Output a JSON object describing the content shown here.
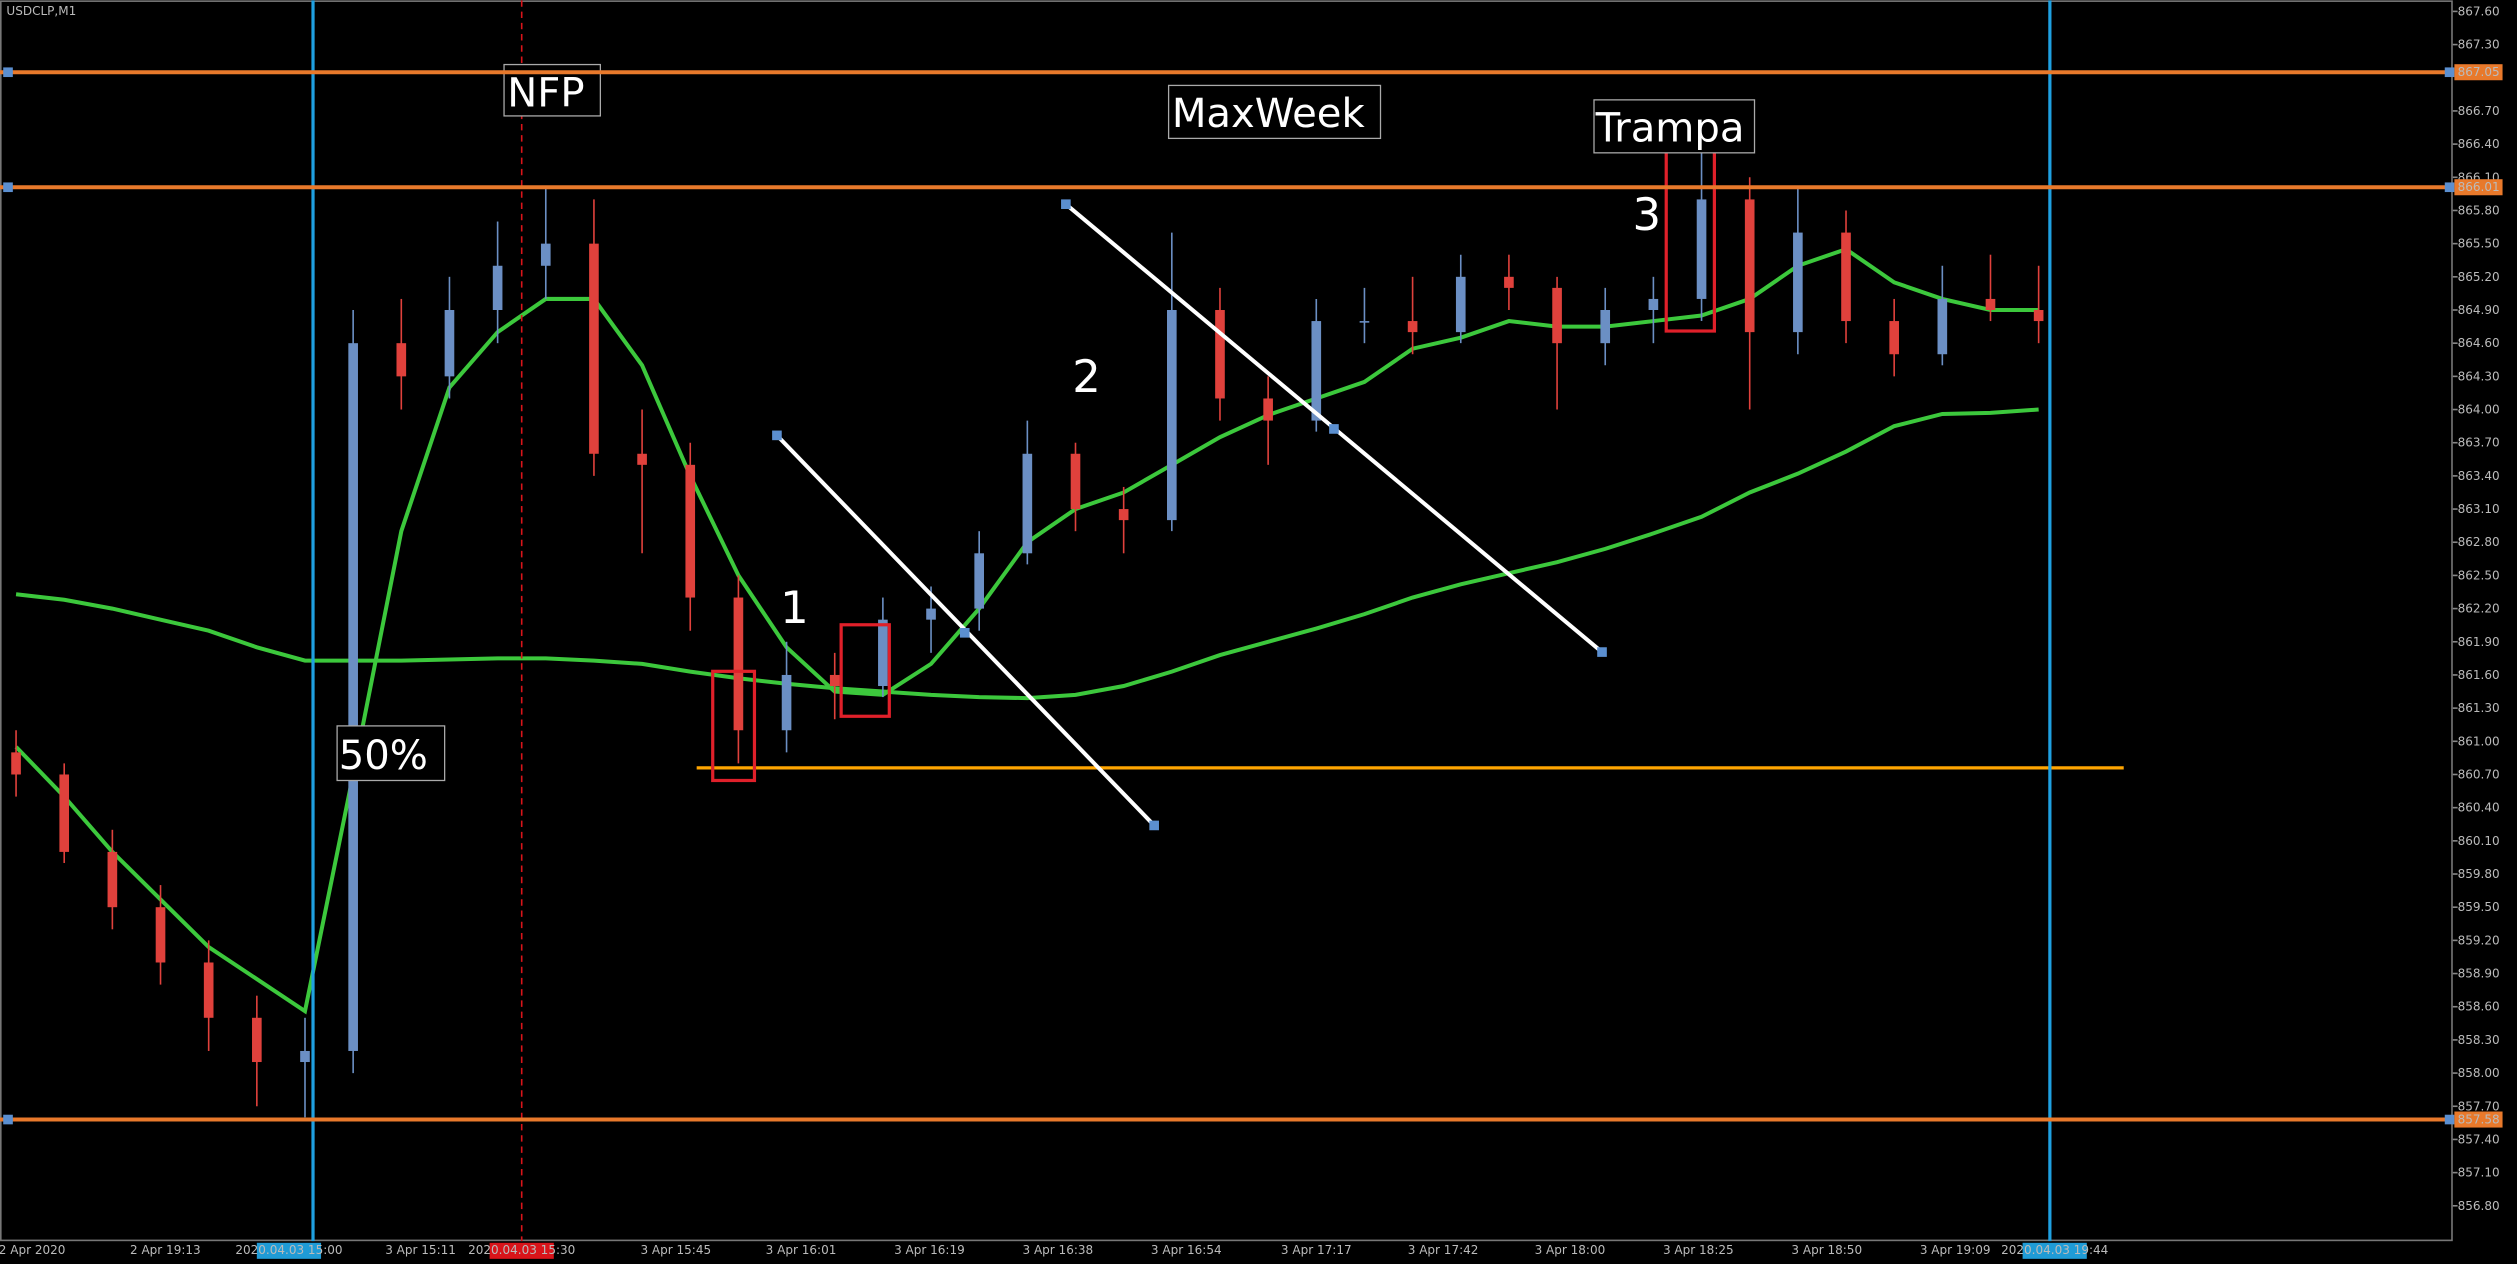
{
  "chart_data": {
    "type": "candlestick",
    "symbol": "USDCLP,M1",
    "up_color": "#6b8fc4",
    "down_color": "#e0413c",
    "ohlc": [
      [
        860.9,
        861.1,
        860.5,
        860.7
      ],
      [
        860.7,
        860.8,
        859.9,
        860.0
      ],
      [
        860.0,
        860.2,
        859.3,
        859.5
      ],
      [
        859.5,
        859.7,
        858.8,
        859.0
      ],
      [
        859.0,
        859.2,
        858.2,
        858.5
      ],
      [
        858.5,
        858.7,
        857.7,
        858.1
      ],
      [
        858.1,
        858.5,
        857.6,
        858.2
      ],
      [
        858.2,
        864.9,
        858.0,
        864.6
      ],
      [
        864.6,
        865.0,
        864.0,
        864.3
      ],
      [
        864.3,
        865.2,
        864.1,
        864.9
      ],
      [
        864.9,
        865.7,
        864.6,
        865.3
      ],
      [
        865.3,
        866.0,
        865.0,
        865.5
      ],
      [
        865.5,
        865.9,
        863.4,
        863.6
      ],
      [
        863.6,
        864.0,
        862.7,
        863.5
      ],
      [
        863.5,
        863.7,
        862.0,
        862.3
      ],
      [
        862.3,
        862.5,
        860.8,
        861.1
      ],
      [
        861.1,
        861.9,
        860.9,
        861.6
      ],
      [
        861.6,
        861.8,
        861.2,
        861.5
      ],
      [
        861.5,
        862.3,
        861.4,
        862.1
      ],
      [
        862.1,
        862.4,
        861.8,
        862.2
      ],
      [
        862.2,
        862.9,
        862.0,
        862.7
      ],
      [
        862.7,
        863.9,
        862.6,
        863.6
      ],
      [
        863.6,
        863.7,
        862.9,
        863.1
      ],
      [
        863.1,
        863.3,
        862.7,
        863.0
      ],
      [
        863.0,
        865.6,
        862.9,
        864.9
      ],
      [
        864.9,
        865.1,
        863.9,
        864.1
      ],
      [
        864.1,
        864.3,
        863.5,
        863.9
      ],
      [
        863.9,
        865.0,
        863.8,
        864.8
      ],
      [
        864.8,
        865.1,
        864.6,
        864.8
      ],
      [
        864.8,
        865.2,
        864.5,
        864.7
      ],
      [
        864.7,
        865.4,
        864.6,
        865.2
      ],
      [
        865.2,
        865.4,
        864.9,
        865.1
      ],
      [
        865.1,
        865.2,
        864.0,
        864.6
      ],
      [
        864.6,
        865.1,
        864.4,
        864.9
      ],
      [
        864.9,
        865.2,
        864.6,
        865.0
      ],
      [
        865.0,
        866.4,
        864.8,
        865.9
      ],
      [
        865.9,
        866.1,
        864.0,
        864.7
      ],
      [
        864.7,
        866.0,
        864.5,
        865.6
      ],
      [
        865.6,
        865.8,
        864.6,
        864.8
      ],
      [
        864.8,
        865.0,
        864.3,
        864.5
      ],
      [
        864.5,
        865.3,
        864.4,
        865.0
      ],
      [
        865.0,
        865.4,
        864.8,
        864.9
      ],
      [
        864.9,
        865.3,
        864.6,
        864.8
      ]
    ],
    "series": [
      {
        "color": "#3cc83c",
        "values": [
          860.95,
          860.5,
          860.0,
          859.57,
          859.14,
          858.85,
          858.56,
          860.7,
          862.9,
          864.2,
          864.7,
          865.0,
          865.0,
          864.4,
          863.4,
          862.5,
          861.85,
          861.45,
          861.42,
          861.7,
          862.2,
          862.8,
          863.1,
          863.25,
          863.5,
          863.75,
          863.95,
          864.1,
          864.25,
          864.55,
          864.65,
          864.8,
          864.75,
          864.75,
          864.8,
          864.85,
          865.0,
          865.3,
          865.45,
          865.15,
          865.0,
          864.9,
          864.9
        ]
      },
      {
        "color": "#3cc83c",
        "values": [
          862.33,
          862.28,
          862.2,
          862.1,
          862.0,
          861.85,
          861.73,
          861.73,
          861.73,
          861.74,
          861.75,
          861.75,
          861.73,
          861.7,
          861.63,
          861.57,
          861.52,
          861.48,
          861.45,
          861.42,
          861.4,
          861.39,
          861.42,
          861.5,
          861.63,
          861.78,
          861.9,
          862.02,
          862.15,
          862.3,
          862.42,
          862.52,
          862.62,
          862.74,
          862.88,
          863.03,
          863.25,
          863.42,
          863.62,
          863.85,
          863.96,
          863.97,
          864.0
        ]
      }
    ],
    "levels": [
      {
        "value": 867.05,
        "label": "867.05"
      },
      {
        "value": 866.01,
        "label": "866.01"
      },
      {
        "value": 857.58,
        "label": "857.58"
      }
    ],
    "level_color": "#e8792b",
    "support_level": 860.76,
    "support_color": "#ffa500",
    "ylim": [
      856.48,
      867.7
    ],
    "yticks": [
      {
        "value": 867.6,
        "label": "867.60"
      },
      {
        "value": 867.3,
        "label": "867.30"
      },
      {
        "value": 866.7,
        "label": "866.70"
      },
      {
        "value": 866.4,
        "label": "866.40"
      },
      {
        "value": 866.1,
        "label": "866.10"
      },
      {
        "value": 865.8,
        "label": "865.80"
      },
      {
        "value": 865.5,
        "label": "865.50"
      },
      {
        "value": 865.2,
        "label": "865.20"
      },
      {
        "value": 864.9,
        "label": "864.90"
      },
      {
        "value": 864.6,
        "label": "864.60"
      },
      {
        "value": 864.3,
        "label": "864.30"
      },
      {
        "value": 864,
        "label": "864.00"
      },
      {
        "value": 863.7,
        "label": "863.70"
      },
      {
        "value": 863.4,
        "label": "863.40"
      },
      {
        "value": 863.1,
        "label": "863.10"
      },
      {
        "value": 862.8,
        "label": "862.80"
      },
      {
        "value": 862.5,
        "label": "862.50"
      },
      {
        "value": 862.2,
        "label": "862.20"
      },
      {
        "value": 861.9,
        "label": "861.90"
      },
      {
        "value": 861.6,
        "label": "861.60"
      },
      {
        "value": 861.3,
        "label": "861.30"
      },
      {
        "value": 861,
        "label": "861.00"
      },
      {
        "value": 860.7,
        "label": "860.70"
      },
      {
        "value": 860.4,
        "label": "860.40"
      },
      {
        "value": 860.1,
        "label": "860.10"
      },
      {
        "value": 859.8,
        "label": "859.80"
      },
      {
        "value": 859.5,
        "label": "859.50"
      },
      {
        "value": 859.2,
        "label": "859.20"
      },
      {
        "value": 858.9,
        "label": "858.90"
      },
      {
        "value": 858.6,
        "label": "858.60"
      },
      {
        "value": 858.3,
        "label": "858.30"
      },
      {
        "value": 858,
        "label": "858.00"
      },
      {
        "value": 857.7,
        "label": "857.70"
      },
      {
        "value": 857.4,
        "label": "857.40"
      },
      {
        "value": 857.1,
        "label": "857.10"
      },
      {
        "value": 856.8,
        "label": "856.80"
      }
    ],
    "x_labels": [
      "2 Apr 2020",
      "2 Apr 19:13",
      "2020.04.03 15:00",
      "3 Apr 15:11",
      "2020.04.03 15:30",
      "3 Apr 15:45",
      "3 Apr 16:01",
      "3 Apr 16:19",
      "3 Apr 16:38",
      "3 Apr 16:54",
      "3 Apr 17:17",
      "3 Apr 17:42",
      "3 Apr 18:00",
      "3 Apr 18:25",
      "3 Apr 18:50",
      "3 Apr 19:09",
      "2020.04.03 19:44"
    ],
    "annotations": [
      "NFP",
      "MaxWeek",
      "Trampa",
      "50%",
      "1",
      "2",
      "3"
    ]
  }
}
